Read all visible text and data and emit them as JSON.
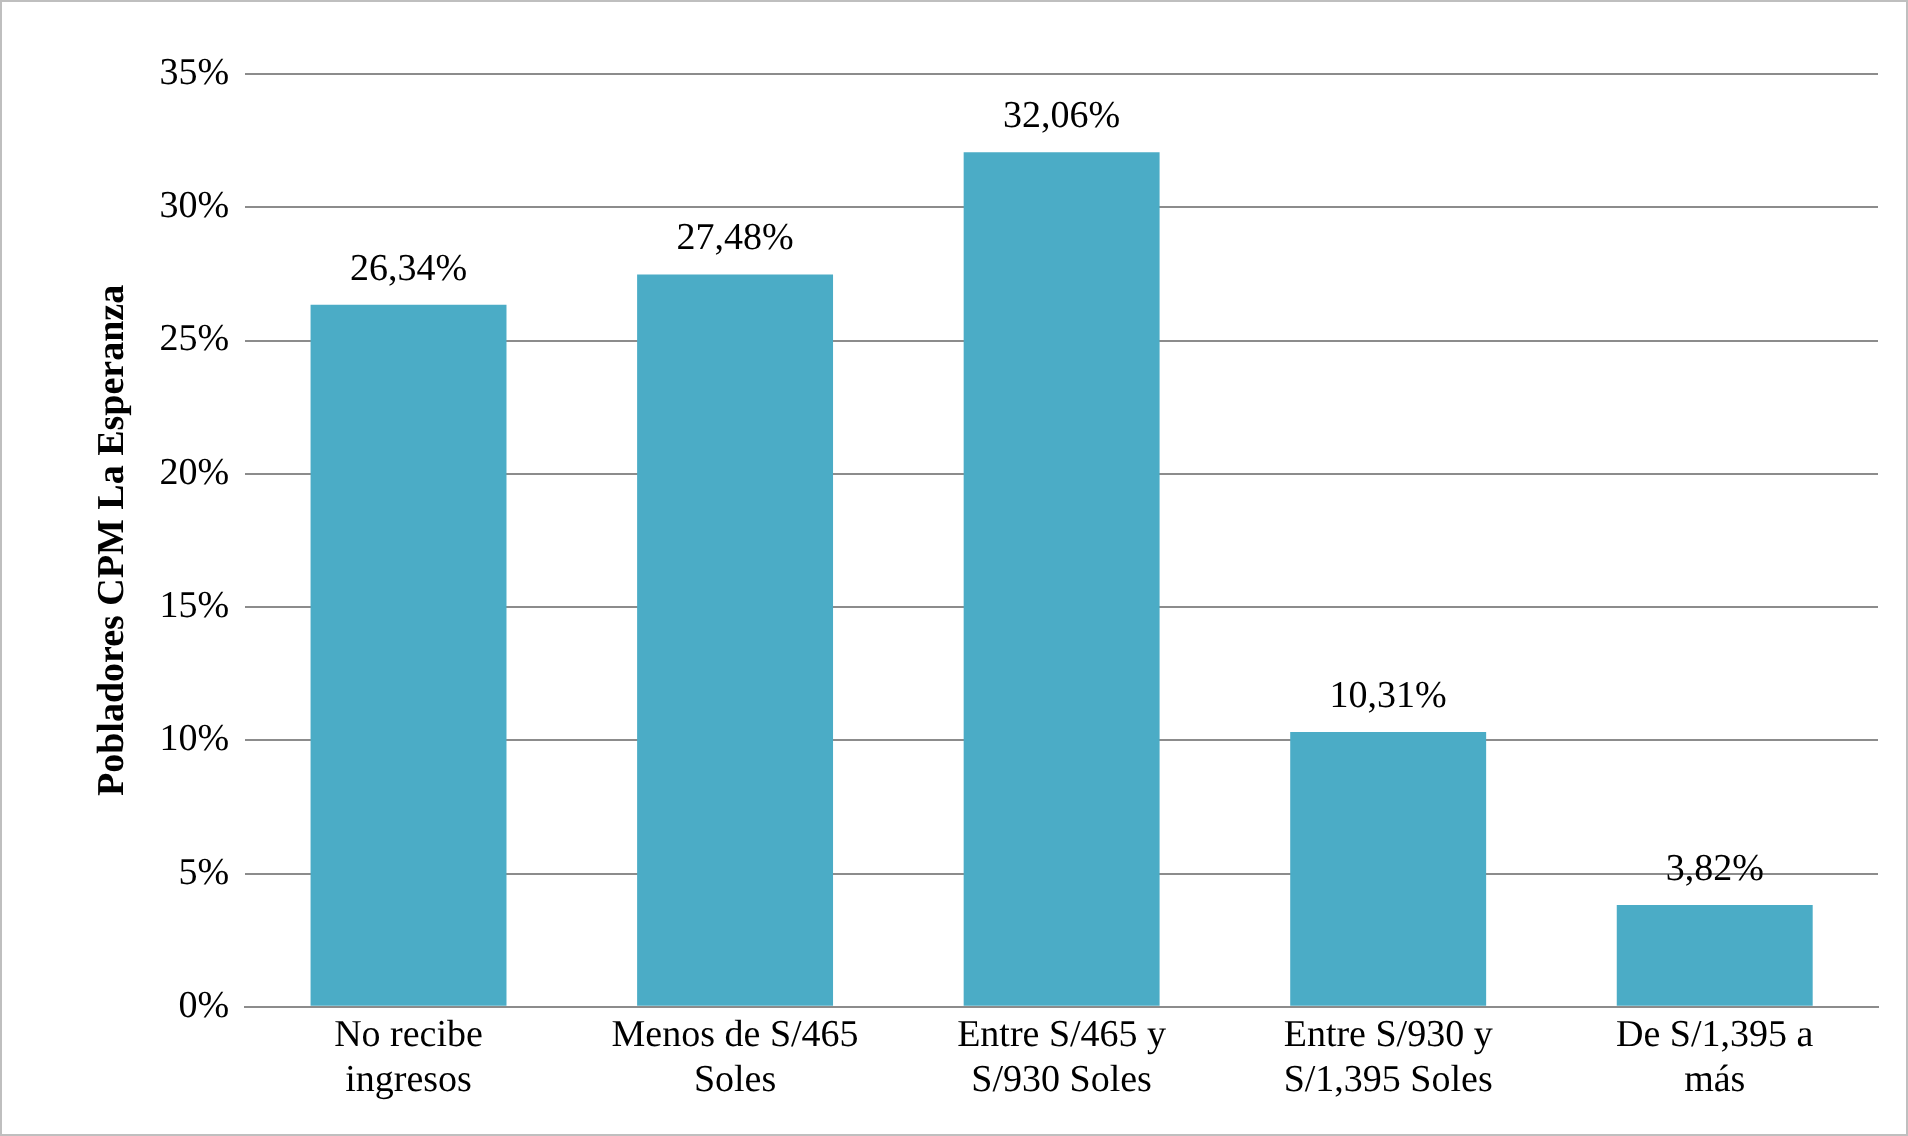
{
  "chart_data": {
    "type": "bar",
    "ylabel": "Pobladores CPM La Esperanza",
    "categories": [
      "No recibe ingresos",
      "Menos de S/465 Soles",
      "Entre S/465 y S/930 Soles",
      "Entre S/930 y S/1,395 Soles",
      "De S/1,395 a más"
    ],
    "values": [
      26.34,
      27.48,
      32.06,
      10.31,
      3.82
    ],
    "value_labels": [
      "26,34%",
      "27,48%",
      "32,06%",
      "10,31%",
      "3,82%"
    ],
    "color": "#4bacc6",
    "ylim": [
      0,
      35
    ],
    "yticks": [
      {
        "value": 0,
        "label": "0%"
      },
      {
        "value": 5,
        "label": "5%"
      },
      {
        "value": 10,
        "label": "10%"
      },
      {
        "value": 15,
        "label": "15%"
      },
      {
        "value": 20,
        "label": "20%"
      },
      {
        "value": 25,
        "label": "25%"
      },
      {
        "value": 30,
        "label": "30%"
      },
      {
        "value": 35,
        "label": "35%"
      }
    ],
    "grid": "y"
  }
}
